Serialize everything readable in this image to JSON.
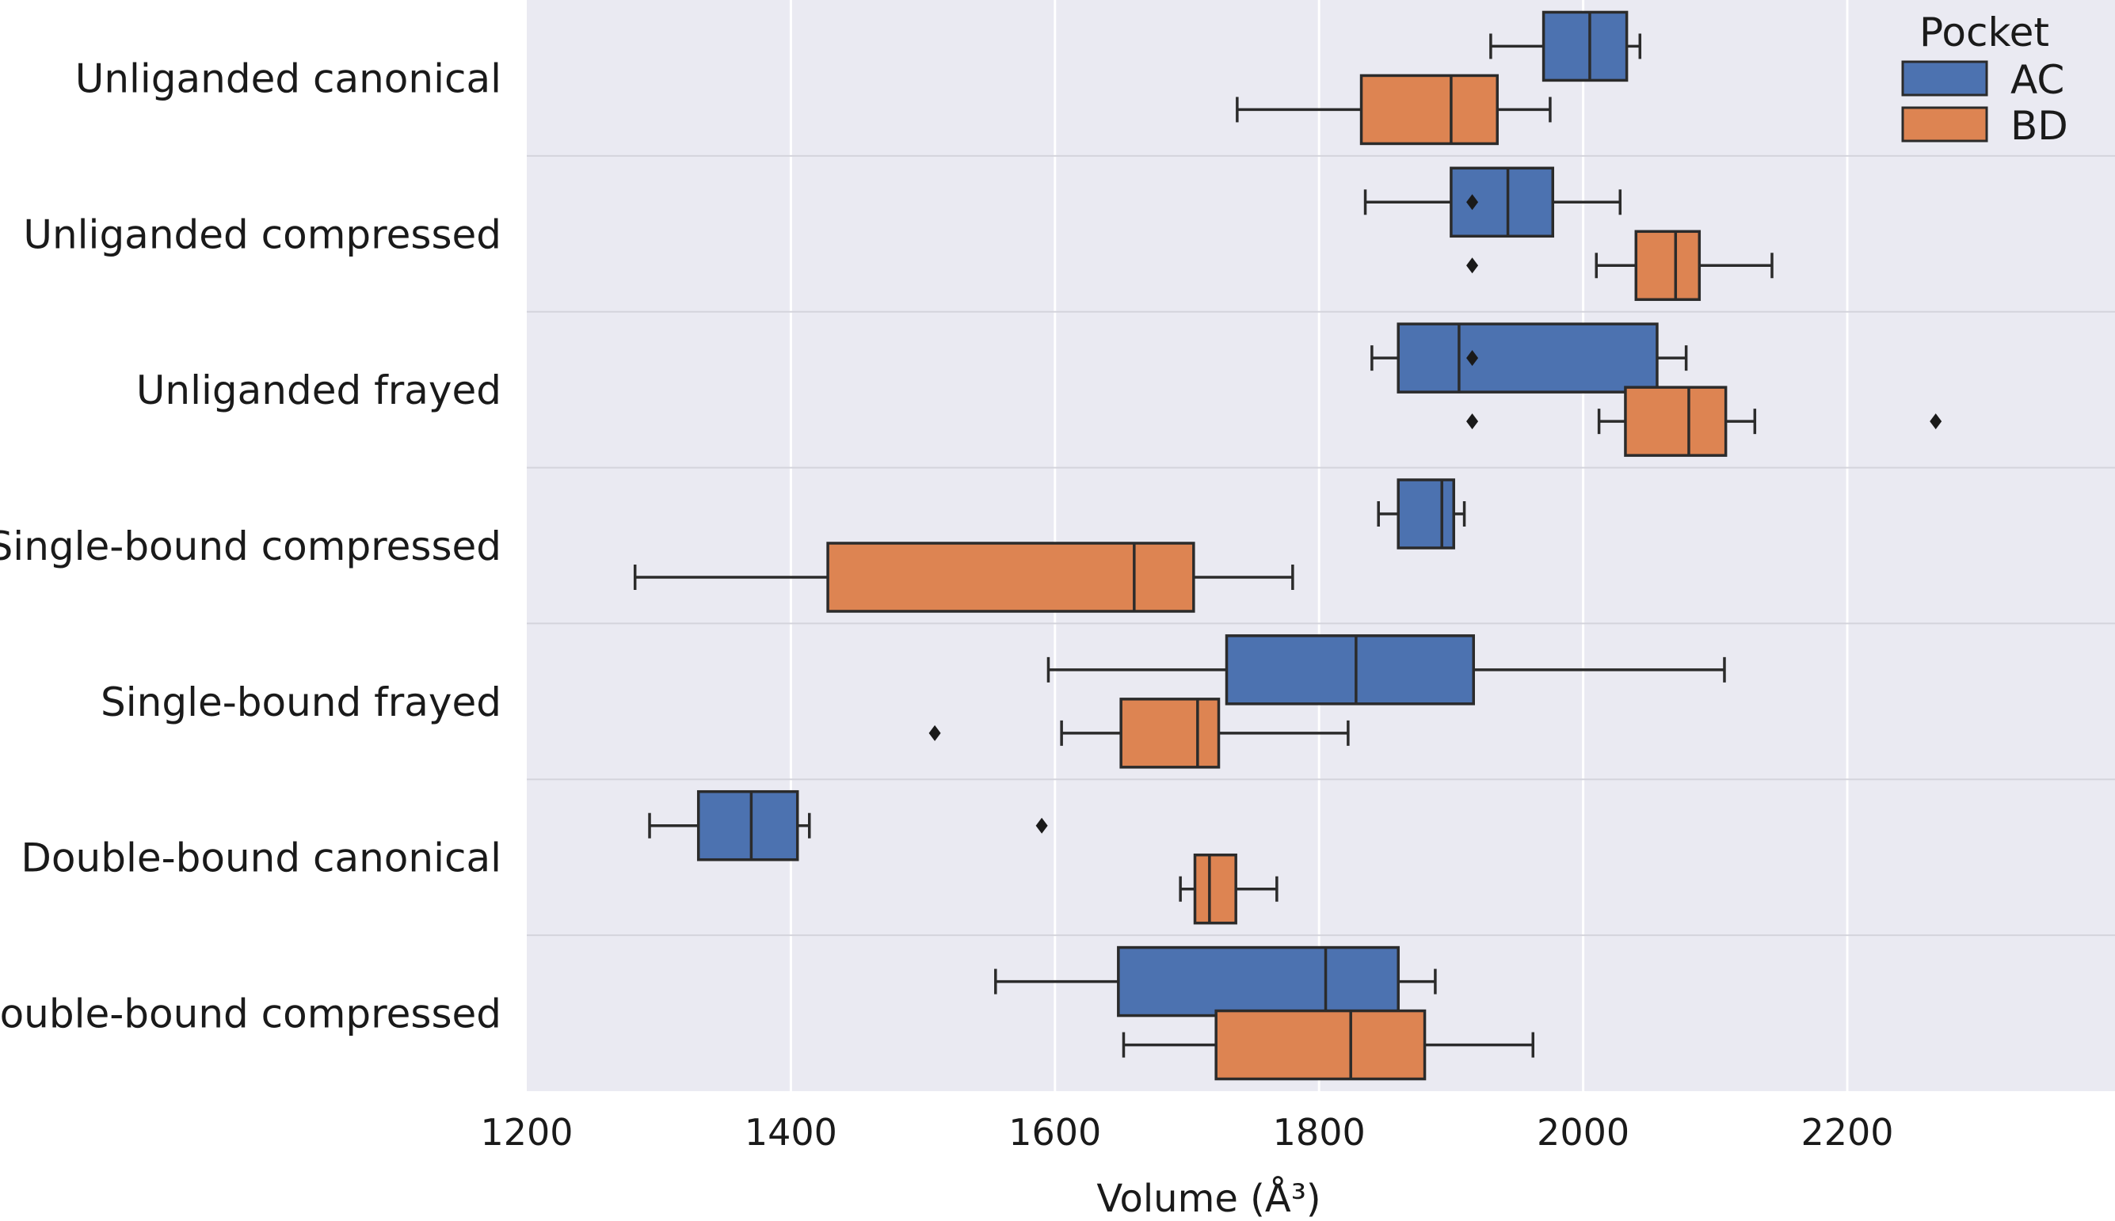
{
  "chart_data": {
    "type": "boxplot",
    "orientation": "horizontal",
    "xlabel": "Volume (Å³)",
    "xlim": [
      1200,
      2400
    ],
    "xticks": [
      1200,
      1400,
      1600,
      1800,
      2000,
      2200
    ],
    "grid": true,
    "legend": {
      "title": "Pocket",
      "position": "top-right",
      "entries": [
        {
          "name": "AC",
          "color": "#4c72b0"
        },
        {
          "name": "BD",
          "color": "#dd8452"
        }
      ]
    },
    "categories": [
      "Unliganded canonical",
      "Unliganded compressed",
      "Unliganded frayed",
      "Single-bound compressed",
      "Single-bound frayed",
      "Double-bound canonical",
      "Double-bound compressed"
    ],
    "series": [
      {
        "name": "AC",
        "color": "#4c72b0",
        "boxes": [
          {
            "whislo": 1930,
            "q1": 1970,
            "med": 2005,
            "q3": 2033,
            "whishi": 2043,
            "fliers": []
          },
          {
            "whislo": 1835,
            "q1": 1900,
            "med": 1943,
            "q3": 1977,
            "whishi": 2028,
            "fliers": [
              1916
            ]
          },
          {
            "whislo": 1840,
            "q1": 1860,
            "med": 1906,
            "q3": 2056,
            "whishi": 2078,
            "fliers": [
              1916
            ]
          },
          {
            "whislo": 1845,
            "q1": 1860,
            "med": 1893,
            "q3": 1902,
            "whishi": 1910,
            "fliers": []
          },
          {
            "whislo": 1595,
            "q1": 1730,
            "med": 1828,
            "q3": 1917,
            "whishi": 2107,
            "fliers": []
          },
          {
            "whislo": 1293,
            "q1": 1330,
            "med": 1370,
            "q3": 1405,
            "whishi": 1414,
            "fliers": [
              1590
            ]
          },
          {
            "whislo": 1555,
            "q1": 1648,
            "med": 1805,
            "q3": 1860,
            "whishi": 1888,
            "fliers": []
          }
        ]
      },
      {
        "name": "BD",
        "color": "#dd8452",
        "boxes": [
          {
            "whislo": 1738,
            "q1": 1832,
            "med": 1900,
            "q3": 1935,
            "whishi": 1975,
            "fliers": []
          },
          {
            "whislo": 2010,
            "q1": 2040,
            "med": 2070,
            "q3": 2088,
            "whishi": 2143,
            "fliers": [
              1916
            ]
          },
          {
            "whislo": 2012,
            "q1": 2032,
            "med": 2080,
            "q3": 2108,
            "whishi": 2130,
            "fliers": [
              1916,
              2267
            ]
          },
          {
            "whislo": 1282,
            "q1": 1428,
            "med": 1660,
            "q3": 1705,
            "whishi": 1780,
            "fliers": []
          },
          {
            "whislo": 1605,
            "q1": 1650,
            "med": 1708,
            "q3": 1724,
            "whishi": 1822,
            "fliers": [
              1509
            ]
          },
          {
            "whislo": 1695,
            "q1": 1706,
            "med": 1717,
            "q3": 1737,
            "whishi": 1768,
            "fliers": []
          },
          {
            "whislo": 1652,
            "q1": 1722,
            "med": 1824,
            "q3": 1880,
            "whishi": 1962,
            "fliers": []
          }
        ]
      }
    ]
  }
}
